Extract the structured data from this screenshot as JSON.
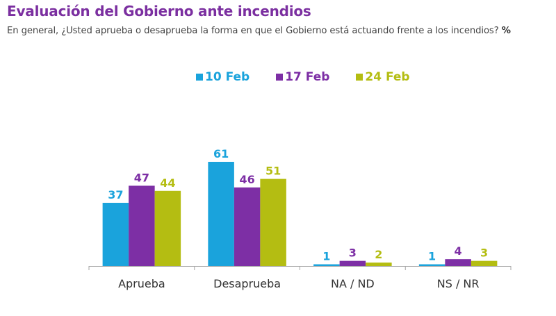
{
  "header": {
    "title": "Evaluación del Gobierno ante incendios",
    "subtitle": "En general, ¿Usted aprueba o desaprueba la forma en que el Gobierno está actuando frente a los incendios?",
    "unit": "%"
  },
  "chart_data": {
    "type": "bar",
    "title": "Evaluación del Gobierno ante incendios",
    "subtitle": "En general, ¿Usted aprueba o desaprueba la forma en que el Gobierno está actuando frente a los incendios? %",
    "xlabel": "",
    "ylabel": "%",
    "ylim": [
      0,
      70
    ],
    "grid": false,
    "legend_position": "top-center",
    "categories": [
      "Aprueba",
      "Desaprueba",
      "NA / ND",
      "NS / NR"
    ],
    "series": [
      {
        "name": "10 Feb",
        "color": "#1aa3dc",
        "values": [
          37,
          61,
          1,
          1
        ]
      },
      {
        "name": "17 Feb",
        "color": "#7d2fa5",
        "values": [
          47,
          46,
          3,
          4
        ]
      },
      {
        "name": "24 Feb",
        "color": "#b4bd12",
        "values": [
          44,
          51,
          2,
          3
        ]
      }
    ]
  }
}
